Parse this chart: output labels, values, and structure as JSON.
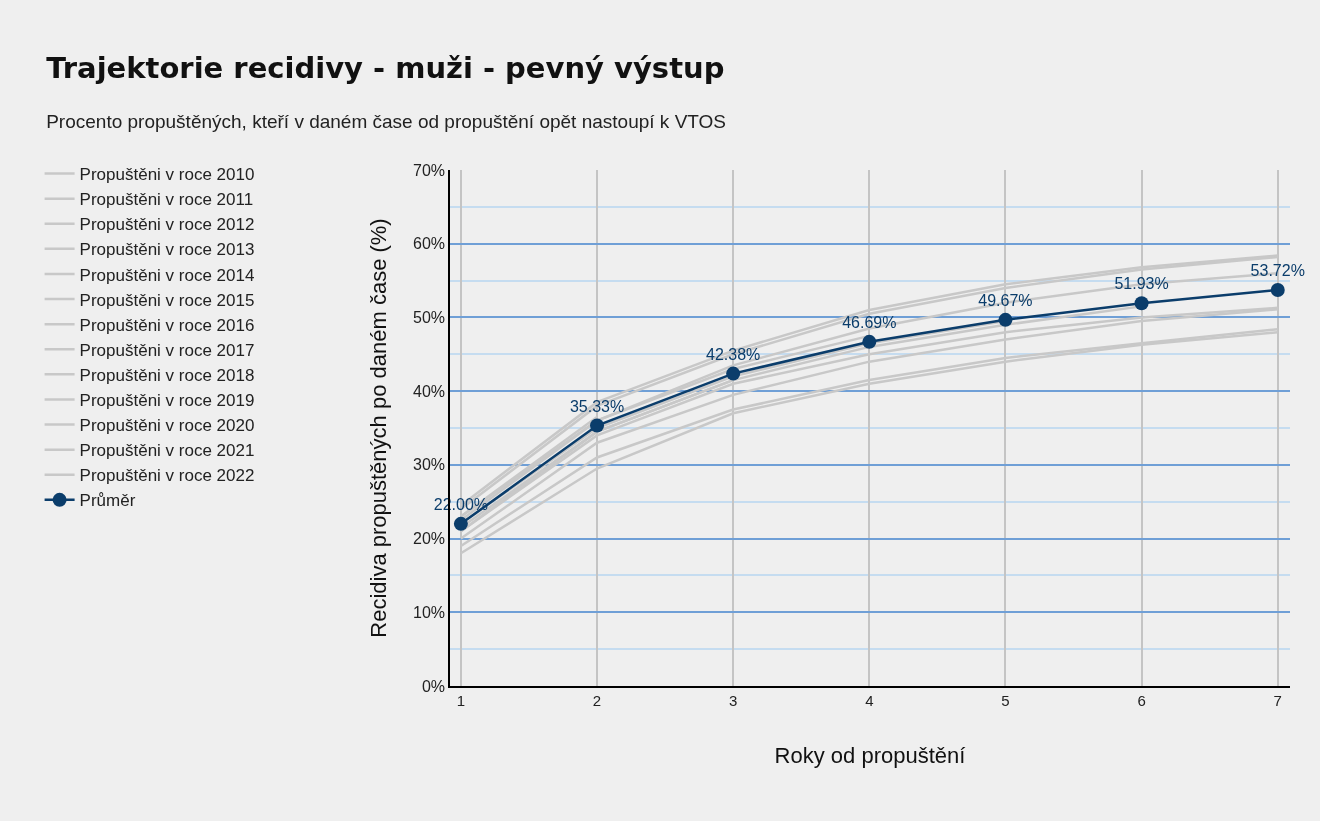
{
  "chart_data": {
    "type": "line",
    "title": "Trajektorie recidivy - muži - pevný výstup",
    "subtitle": "Procento propuštěných, kteří v daném čase od propuštění opět nastoupí k VTOS",
    "xlabel": "Roky od propuštění",
    "ylabel": "Recidiva propuštěných po daném čase (%)",
    "x": [
      1,
      2,
      3,
      4,
      5,
      6,
      7
    ],
    "xlim": [
      0.92,
      7.09
    ],
    "xticks": [
      1,
      2,
      3,
      4,
      5,
      6,
      7
    ],
    "ylim": [
      0,
      70
    ],
    "yticks": [
      {
        "value": 0,
        "label": "0%"
      },
      {
        "value": 5,
        "label": null
      },
      {
        "value": 10,
        "label": "10%"
      },
      {
        "value": 15,
        "label": null
      },
      {
        "value": 20,
        "label": "20%"
      },
      {
        "value": 25,
        "label": null
      },
      {
        "value": 30,
        "label": "30%"
      },
      {
        "value": 35,
        "label": null
      },
      {
        "value": 40,
        "label": "40%"
      },
      {
        "value": 45,
        "label": null
      },
      {
        "value": 50,
        "label": "50%"
      },
      {
        "value": 55,
        "label": null
      },
      {
        "value": 60,
        "label": "60%"
      },
      {
        "value": 65,
        "label": null
      },
      {
        "value": 70,
        "label": "70%"
      }
    ],
    "grid": true,
    "legend": "left",
    "series": [
      {
        "name": "Propuštěni v roce 2010",
        "color": "#c8c8c8",
        "marker": "none",
        "values": [
          24.5,
          38.5,
          45.5,
          51,
          54.5,
          56.8,
          58.4
        ]
      },
      {
        "name": "Propuštěni v roce 2011",
        "color": "#c8c8c8",
        "marker": "none",
        "values": [
          24,
          38,
          45,
          50.5,
          54,
          56.5,
          58.2
        ]
      },
      {
        "name": "Propuštěni v roce 2012",
        "color": "#c8c8c8",
        "marker": "none",
        "values": [
          23,
          36,
          43.5,
          48.5,
          52,
          54.5,
          56
        ]
      },
      {
        "name": "Propuštěni v roce 2013",
        "color": "#c8c8c8",
        "marker": "none",
        "values": [
          21,
          34,
          41,
          45,
          48,
          50,
          51.3
        ]
      },
      {
        "name": "Propuštěni v roce 2014",
        "color": "#c8c8c8",
        "marker": "none",
        "values": [
          20,
          33,
          39.5,
          44,
          47,
          49.5,
          51.1
        ]
      },
      {
        "name": "Propuštěni v roce 2015",
        "color": "#c8c8c8",
        "marker": "none",
        "values": [
          19,
          31,
          37.5,
          41.5,
          44.5,
          46.5,
          48.4
        ]
      },
      {
        "name": "Propuštěni v roce 2016",
        "color": "#c8c8c8",
        "marker": "none",
        "values": [
          18,
          29.5,
          37,
          41,
          44,
          46.3,
          48
        ]
      },
      {
        "name": "Propuštěni v roce 2017",
        "color": "#c8c8c8",
        "marker": "none",
        "values": [
          21.5,
          34.5,
          41.5,
          46,
          49,
          51.5,
          null
        ]
      },
      {
        "name": "Propuštěni v roce 2018",
        "color": "#c8c8c8",
        "marker": "none",
        "values": [
          22,
          35,
          42,
          46.5,
          49.5,
          null,
          null
        ]
      },
      {
        "name": "Propuštěni v roce 2019",
        "color": "#c8c8c8",
        "marker": "none",
        "values": [
          22.5,
          36,
          43,
          47.5,
          null,
          null,
          null
        ]
      },
      {
        "name": "Propuštěni v roce 2020",
        "color": "#c8c8c8",
        "marker": "none",
        "values": [
          21,
          34.5,
          41.5,
          null,
          null,
          null,
          null
        ]
      },
      {
        "name": "Propuštěni v roce 2021",
        "color": "#c8c8c8",
        "marker": "none",
        "values": [
          23,
          36.5,
          null,
          null,
          null,
          null,
          null
        ]
      },
      {
        "name": "Propuštěni v roce 2022",
        "color": "#c8c8c8",
        "marker": "none",
        "values": [
          null,
          null,
          null,
          null,
          null,
          null,
          null
        ]
      },
      {
        "name": "Průměr",
        "color": "#0b3d6b",
        "marker": "circle",
        "values": [
          22.0,
          35.33,
          42.38,
          46.69,
          49.67,
          51.93,
          53.72
        ],
        "value_labels": [
          "22.00%",
          "35.33%",
          "42.38%",
          "46.69%",
          "49.67%",
          "51.93%",
          "53.72%"
        ]
      }
    ]
  }
}
